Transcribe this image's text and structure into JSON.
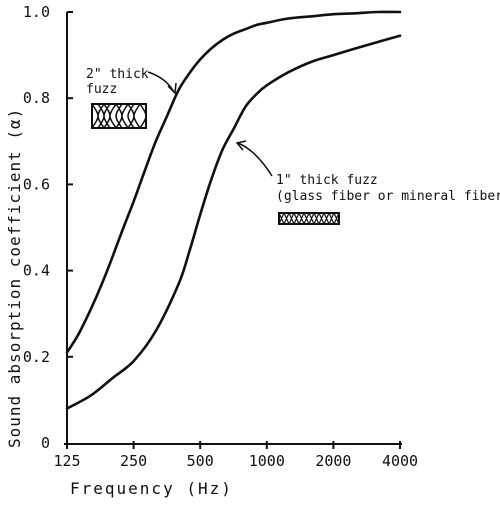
{
  "chart_data": {
    "type": "line",
    "title": "",
    "xlabel": "Frequency (Hz)",
    "ylabel": "Sound absorption coefficient (α)",
    "x_scale": "log2",
    "categories": [
      "125",
      "250",
      "500",
      "1000",
      "2000",
      "4000"
    ],
    "x": [
      125,
      250,
      500,
      1000,
      2000,
      4000
    ],
    "ylim": [
      0,
      1.0
    ],
    "yticks": [
      "0",
      "0.2",
      "0.4",
      "0.6",
      "0.8",
      "1.0"
    ],
    "grid": false,
    "series": [
      {
        "name": "2\" thick fuzz",
        "x": [
          125,
          140,
          160,
          180,
          200,
          225,
          250,
          280,
          315,
          355,
          400,
          450,
          500,
          560,
          630,
          710,
          800,
          900,
          1000,
          1250,
          1600,
          2000,
          2500,
          3150,
          4000
        ],
        "values": [
          0.21,
          0.25,
          0.31,
          0.37,
          0.43,
          0.5,
          0.56,
          0.63,
          0.7,
          0.76,
          0.82,
          0.86,
          0.89,
          0.915,
          0.935,
          0.95,
          0.96,
          0.97,
          0.975,
          0.985,
          0.99,
          0.995,
          0.997,
          1.0,
          1.0
        ]
      },
      {
        "name": "1\" thick fuzz",
        "x": [
          125,
          160,
          200,
          250,
          315,
          400,
          450,
          500,
          560,
          630,
          710,
          800,
          900,
          1000,
          1250,
          1600,
          2000,
          2500,
          3150,
          4000
        ],
        "values": [
          0.08,
          0.11,
          0.15,
          0.19,
          0.26,
          0.37,
          0.45,
          0.53,
          0.61,
          0.68,
          0.73,
          0.78,
          0.81,
          0.83,
          0.86,
          0.885,
          0.9,
          0.915,
          0.93,
          0.945
        ]
      }
    ],
    "annotations": [
      {
        "lines": [
          "2\" thick",
          "fuzz"
        ]
      },
      {
        "lines": [
          "1\" thick fuzz",
          "(glass fiber or mineral fiber)"
        ]
      }
    ]
  }
}
